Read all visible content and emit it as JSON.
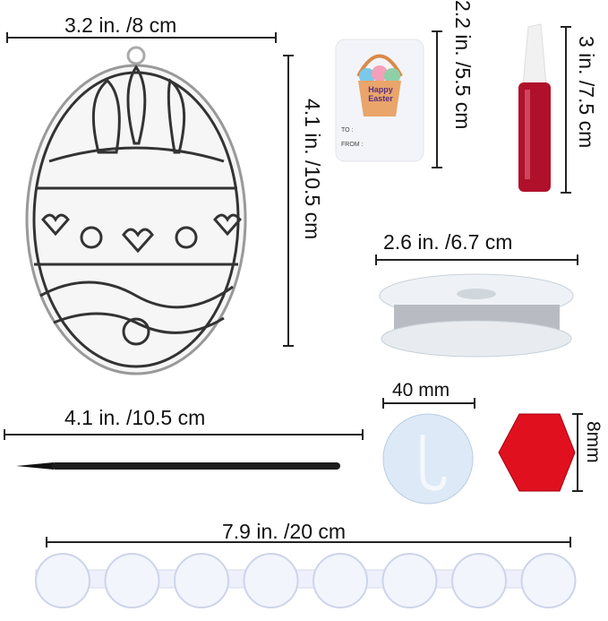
{
  "dimensions": {
    "egg_width": "3.2 in. /8 cm",
    "egg_height": "4.1 in. /10.5 cm",
    "tag_height": "2.2 in. /5.5 cm",
    "bottle_height": "3 in. /7.5 cm",
    "wire_width": "2.6 in. /6.7 cm",
    "hook_width": "40 mm",
    "bead_size": "8mm",
    "brush_length": "4.1 in. /10.5 cm",
    "palette_length": "7.9 in. /20 cm"
  },
  "tag": {
    "title_line1": "Happy",
    "title_line2": "Easter",
    "to": "TO :",
    "from": "FROM :"
  },
  "colors": {
    "paint": "#b0102a",
    "bead": "#e0101f",
    "line": "#222222"
  }
}
